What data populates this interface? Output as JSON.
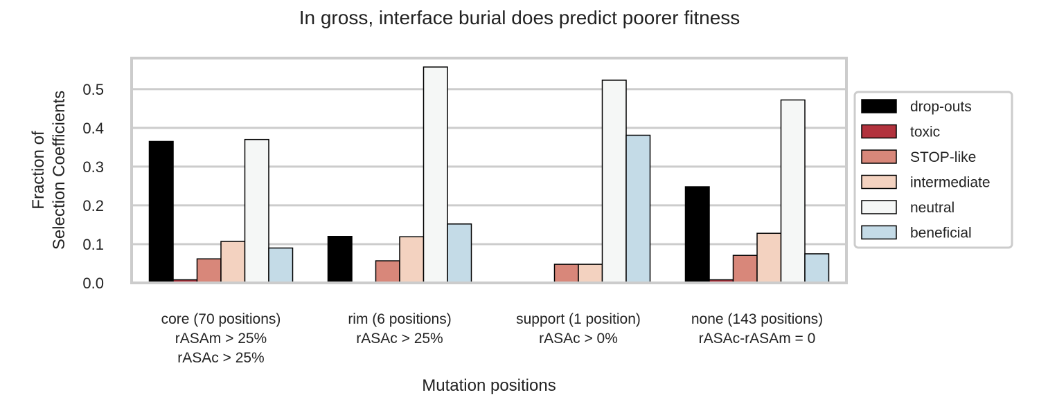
{
  "chart_data": {
    "type": "bar",
    "title": "In gross, interface burial does predict poorer fitness",
    "xlabel": "Mutation positions",
    "ylabel": [
      "Fraction of",
      "Selection Coefficients"
    ],
    "ylim": [
      0,
      0.58
    ],
    "yticks": [
      "0.0",
      "0.1",
      "0.2",
      "0.3",
      "0.4",
      "0.5"
    ],
    "grid": true,
    "legend_position": "right",
    "categories": [
      [
        "core (70 positions)",
        "rASAm > 25%",
        "rASAc > 25%"
      ],
      [
        "rim (6 positions)",
        "rASAc > 25%"
      ],
      [
        "support (1 position)",
        "rASAc > 0%"
      ],
      [
        "none (143 positions)",
        "rASAc-rASAm = 0"
      ]
    ],
    "series": [
      {
        "name": "drop-outs",
        "color": "#000000",
        "values": [
          0.365,
          0.12,
          0.0,
          0.248
        ]
      },
      {
        "name": "toxic",
        "color": "#b2323d",
        "values": [
          0.008,
          0.0,
          0.0,
          0.008
        ]
      },
      {
        "name": "STOP-like",
        "color": "#d8877a",
        "values": [
          0.062,
          0.057,
          0.048,
          0.071
        ]
      },
      {
        "name": "intermediate",
        "color": "#f3d2c0",
        "values": [
          0.107,
          0.119,
          0.048,
          0.128
        ]
      },
      {
        "name": "neutral",
        "color": "#f5f7f6",
        "values": [
          0.37,
          0.557,
          0.523,
          0.472
        ]
      },
      {
        "name": "beneficial",
        "color": "#c4dbe7",
        "values": [
          0.09,
          0.152,
          0.381,
          0.075
        ]
      }
    ]
  }
}
